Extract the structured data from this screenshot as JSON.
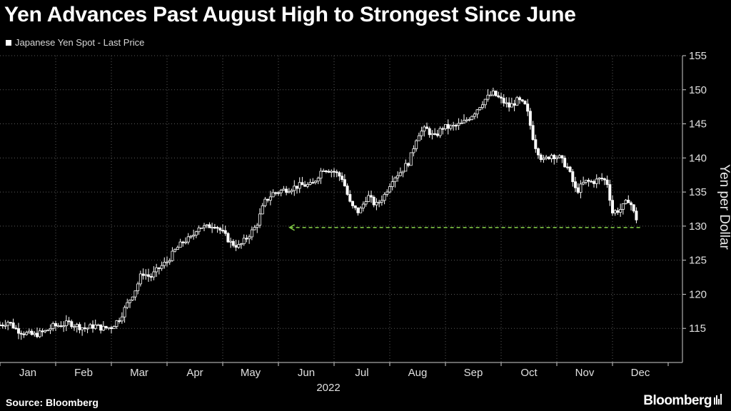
{
  "header": {
    "title": "Yen Advances Past August High to Strongest Since June"
  },
  "legend": {
    "label": "Japanese Yen Spot - Last Price"
  },
  "footer": {
    "source": "Source: Bloomberg",
    "brand": "Bloomberg"
  },
  "colors": {
    "background": "#000000",
    "candle": "#ffffff",
    "grid": "#5a5a5a",
    "reference_line": "#7cc242"
  },
  "chart_data": {
    "type": "line",
    "title": "Yen Advances Past August High to Strongest Since June",
    "series_name": "Japanese Yen Spot - Last Price",
    "ylabel": "Yen per Dollar",
    "ylim": [
      110,
      155
    ],
    "yticks": [
      115,
      120,
      125,
      130,
      135,
      140,
      145,
      150,
      155
    ],
    "y_axis_side": "right",
    "x_year_label": "2022",
    "x_months": [
      "Jan",
      "Feb",
      "Mar",
      "Apr",
      "May",
      "Jun",
      "Jul",
      "Aug",
      "Sep",
      "Oct",
      "Nov",
      "Dec"
    ],
    "grid": "dotted",
    "legend_position": "top-left",
    "reference_line": {
      "value": 129.8,
      "from_month": 5.2,
      "style": "dashed",
      "description": "August high"
    },
    "points": [
      [
        0.0,
        115.5
      ],
      [
        0.15,
        116.0
      ],
      [
        0.3,
        114.8
      ],
      [
        0.45,
        114.3
      ],
      [
        0.6,
        114.0
      ],
      [
        0.8,
        114.5
      ],
      [
        0.95,
        115.3
      ],
      [
        1.1,
        115.5
      ],
      [
        1.25,
        115.8
      ],
      [
        1.4,
        115.3
      ],
      [
        1.55,
        115.0
      ],
      [
        1.7,
        115.4
      ],
      [
        1.85,
        115.0
      ],
      [
        2.0,
        115.2
      ],
      [
        2.15,
        116.5
      ],
      [
        2.3,
        118.8
      ],
      [
        2.45,
        121.0
      ],
      [
        2.55,
        123.2
      ],
      [
        2.7,
        122.5
      ],
      [
        2.85,
        123.8
      ],
      [
        3.0,
        124.8
      ],
      [
        3.15,
        126.5
      ],
      [
        3.3,
        127.8
      ],
      [
        3.45,
        128.3
      ],
      [
        3.55,
        130.0
      ],
      [
        3.7,
        129.8
      ],
      [
        3.85,
        130.3
      ],
      [
        4.0,
        129.0
      ],
      [
        4.15,
        127.5
      ],
      [
        4.3,
        127.0
      ],
      [
        4.45,
        128.5
      ],
      [
        4.6,
        130.0
      ],
      [
        4.75,
        133.5
      ],
      [
        4.9,
        134.8
      ],
      [
        5.05,
        135.2
      ],
      [
        5.2,
        135.5
      ],
      [
        5.4,
        136.0
      ],
      [
        5.6,
        136.0
      ],
      [
        5.8,
        138.5
      ],
      [
        6.0,
        138.0
      ],
      [
        6.15,
        137.0
      ],
      [
        6.3,
        133.0
      ],
      [
        6.45,
        132.0
      ],
      [
        6.6,
        134.5
      ],
      [
        6.75,
        133.0
      ],
      [
        6.9,
        134.5
      ],
      [
        7.05,
        137.0
      ],
      [
        7.2,
        138.0
      ],
      [
        7.35,
        139.5
      ],
      [
        7.5,
        143.5
      ],
      [
        7.65,
        144.3
      ],
      [
        7.8,
        143.0
      ],
      [
        7.95,
        144.5
      ],
      [
        8.1,
        144.5
      ],
      [
        8.3,
        145.0
      ],
      [
        8.5,
        146.5
      ],
      [
        8.7,
        148.5
      ],
      [
        8.85,
        149.5
      ],
      [
        9.0,
        148.5
      ],
      [
        9.15,
        147.5
      ],
      [
        9.3,
        148.5
      ],
      [
        9.45,
        147.5
      ],
      [
        9.6,
        142.0
      ],
      [
        9.75,
        139.5
      ],
      [
        9.9,
        140.5
      ],
      [
        10.05,
        140.0
      ],
      [
        10.2,
        138.5
      ],
      [
        10.35,
        135.0
      ],
      [
        10.5,
        136.5
      ],
      [
        10.65,
        136.5
      ],
      [
        10.8,
        137.0
      ],
      [
        10.9,
        136.5
      ],
      [
        11.0,
        132.0
      ],
      [
        11.15,
        132.5
      ],
      [
        11.3,
        134.0
      ],
      [
        11.4,
        131.5
      ],
      [
        11.47,
        130.5
      ]
    ]
  }
}
